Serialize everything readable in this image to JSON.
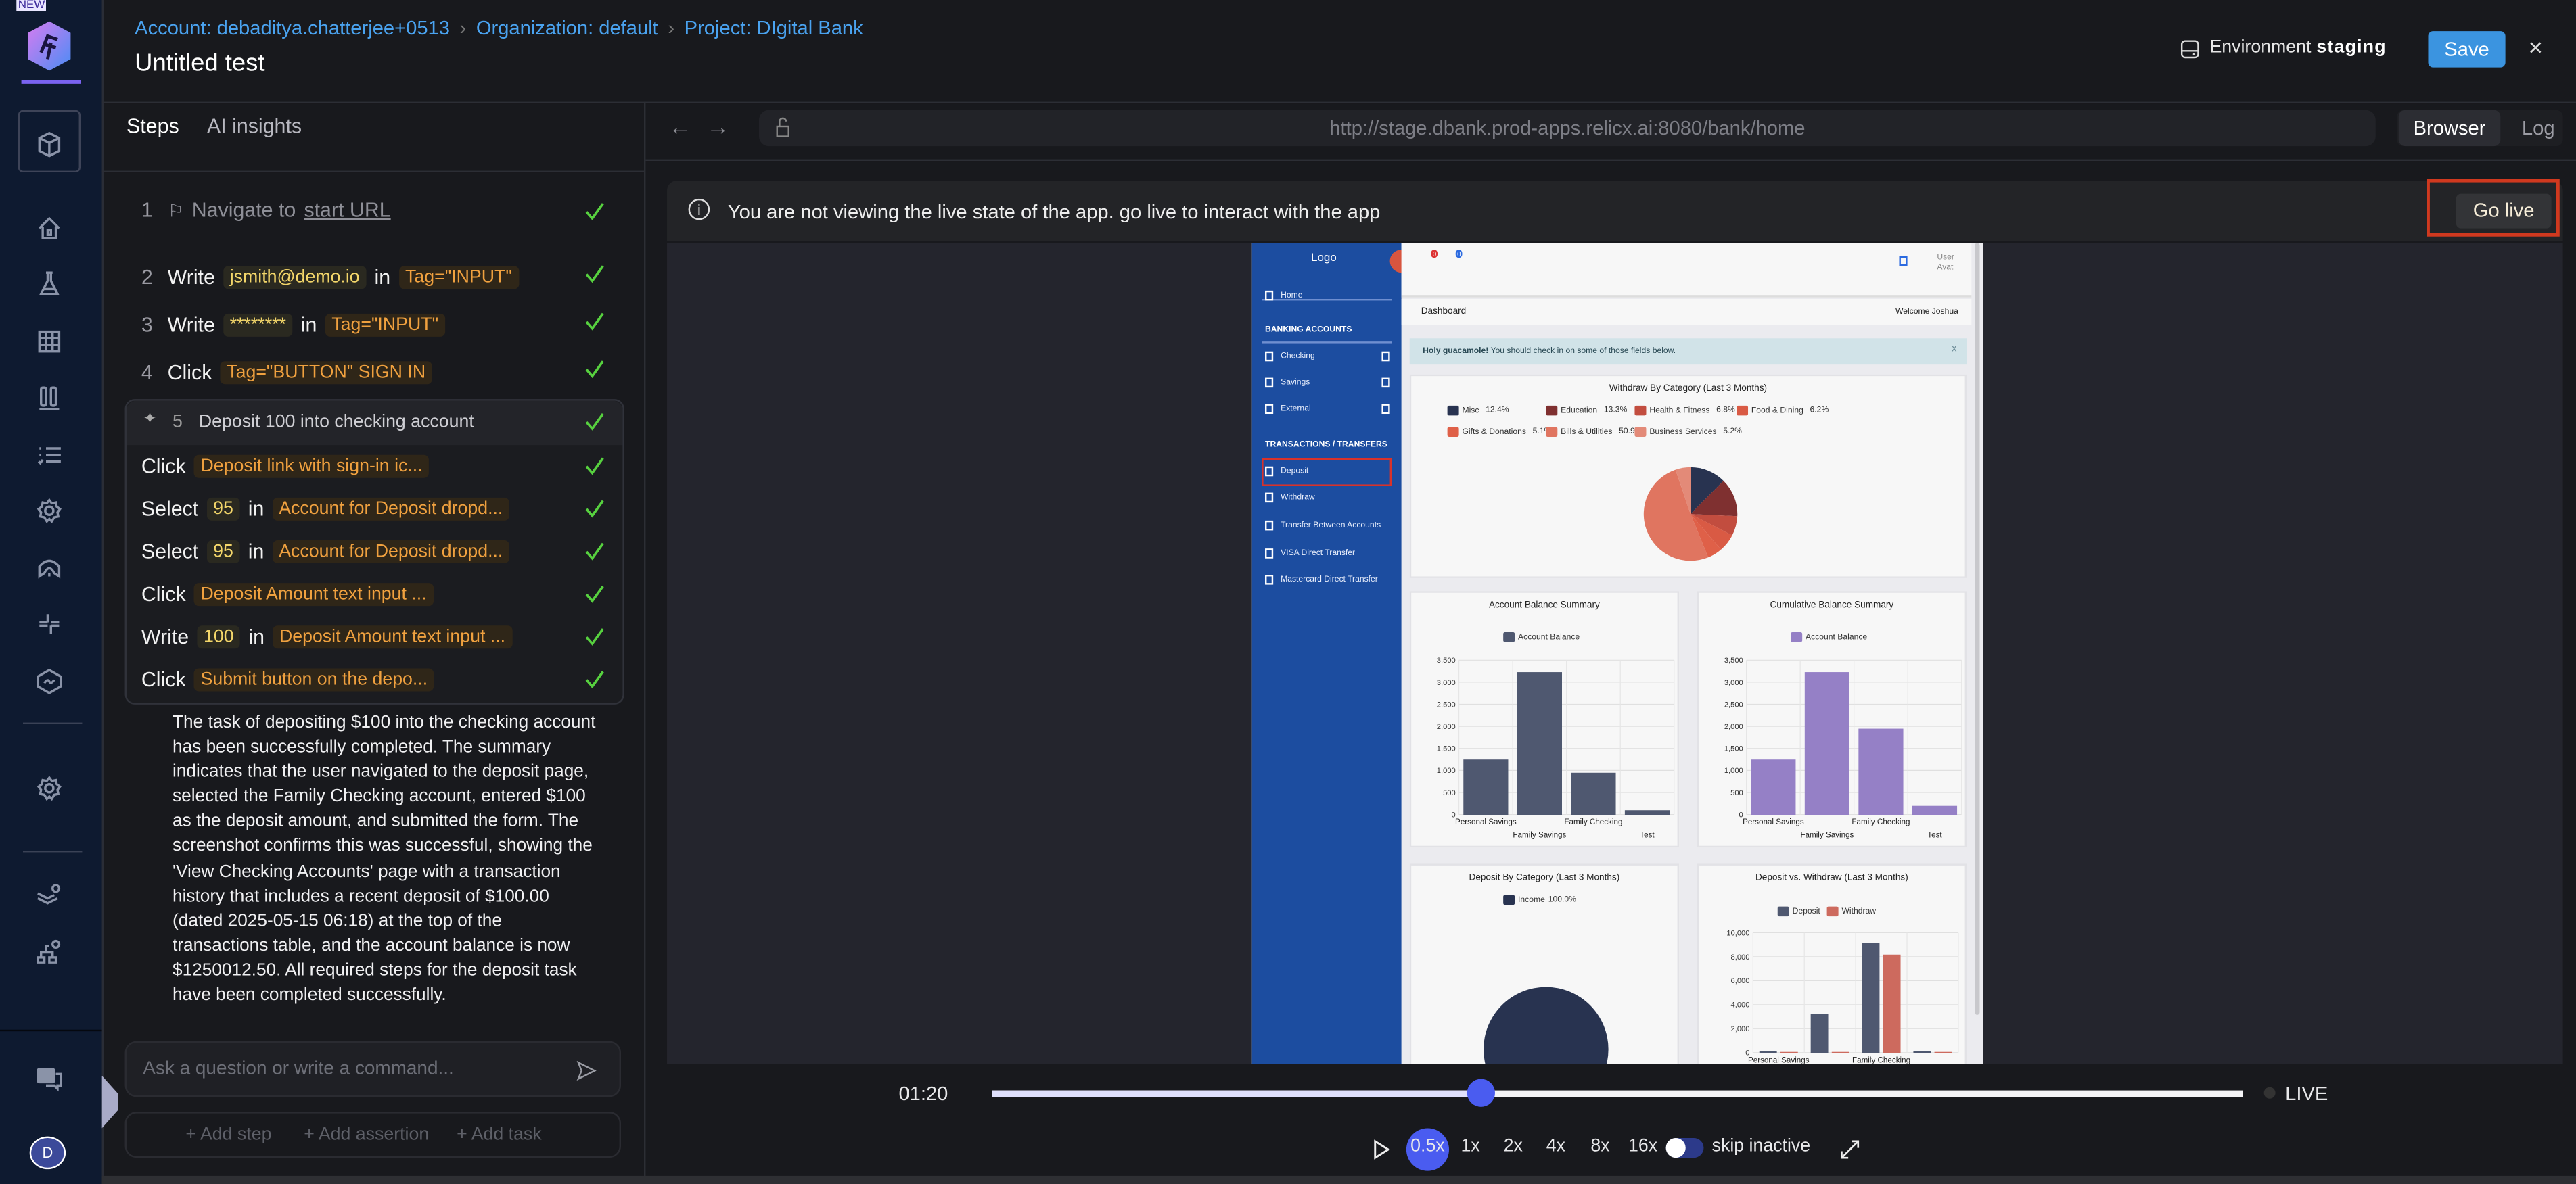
{
  "nav": {
    "new_badge": "NEW",
    "items": [
      "cube-icon",
      "home-icon",
      "flask-icon",
      "grid-icon",
      "columns-icon",
      "list-check-icon",
      "settings-icon",
      "arch-icon",
      "integrations-icon",
      "link-icon",
      "settings-icon",
      "layers-settings-icon",
      "sitemap-settings-icon",
      "help-chat-icon"
    ],
    "avatar_initial": "D"
  },
  "header": {
    "breadcrumb": [
      "Account: debadityа.chatterjee+0513",
      "Organization: default",
      "Project: DIgital Bank"
    ],
    "title": "Untitled test",
    "environment_label": "Environment",
    "environment_value": "staging",
    "save_label": "Save",
    "close_label": "×"
  },
  "left_panel": {
    "tabs": [
      "Steps",
      "AI insights"
    ],
    "active_tab": "Steps",
    "steps": [
      {
        "num": "1",
        "text": "Navigate to",
        "link": "start URL",
        "status": "passed"
      },
      {
        "num": "2",
        "action": "Write",
        "value": "jsmith@demo.io",
        "in": "in",
        "target": "Tag=\"INPUT\"",
        "status": "passed"
      },
      {
        "num": "3",
        "action": "Write",
        "value": "********",
        "in": "in",
        "target": "Tag=\"INPUT\"",
        "status": "passed"
      },
      {
        "num": "4",
        "action": "Click",
        "target": "Tag=\"BUTTON\" SIGN IN",
        "status": "passed"
      }
    ],
    "group": {
      "num": "5",
      "title": "Deposit 100 into checking account",
      "status": "passed",
      "substeps": [
        {
          "action": "Click",
          "target": "Deposit link with sign-in ic..."
        },
        {
          "action": "Select",
          "value": "95",
          "in": "in",
          "target": "Account for Deposit dropd..."
        },
        {
          "action": "Select",
          "value": "95",
          "in": "in",
          "target": "Account for Deposit dropd..."
        },
        {
          "action": "Click",
          "target": "Deposit Amount text input ..."
        },
        {
          "action": "Write",
          "value": "100",
          "in": "in",
          "target": "Deposit Amount text input ..."
        },
        {
          "action": "Click",
          "target": "Submit button on the depo..."
        }
      ]
    },
    "summary": "The task of depositing $100 into the checking account has been successfully completed. The summary indicates that the user navigated to the deposit page, selected the Family Checking account, entered $100 as the deposit amount, and submitted the form. The screenshot confirms this was successful, showing the 'View Checking Accounts' page with a transaction history that includes a recent deposit of $100.00 (dated 2025-05-15 06:18) at the top of the transactions table, and the account balance is now $1250012.50. All required steps for the deposit task have been completed successfully.",
    "ask_placeholder": "Ask a question or write a command...",
    "add_step": "+ Add step",
    "add_assertion": "+ Add assertion",
    "add_task": "+ Add task"
  },
  "browser": {
    "url": "http://stage.dbank.prod-apps.relicx.ai:8080/bank/home",
    "tabs": [
      "Browser",
      "Log"
    ],
    "active_tab": "Browser",
    "notice": "You are not viewing the live state of the app. go live to interact with the app",
    "go_live": "Go live"
  },
  "app": {
    "logo": "Logo",
    "user_avatar": "User Avat",
    "badges": [
      "0",
      "0"
    ],
    "sidebar": {
      "home": "Home",
      "banking_header": "BANKING ACCOUNTS",
      "banking": [
        "Checking",
        "Savings",
        "External"
      ],
      "transactions_header": "TRANSACTIONS / TRANSFERS",
      "transactions": [
        "Deposit",
        "Withdraw",
        "Transfer Between Accounts",
        "VISA Direct Transfer",
        "Mastercard Direct Transfer"
      ],
      "highlighted": "Deposit"
    },
    "page_title": "Dashboard",
    "welcome": "Welcome Joshua",
    "alert_bold": "Holy guacamole!",
    "alert_text": " You should check in on some of those fields below.",
    "alert_close": "x"
  },
  "chart_data": [
    {
      "type": "pie",
      "title": "Withdraw By Category (Last 3 Months)",
      "labels": [
        "Misc",
        "Education",
        "Health & Fitness",
        "Food & Dining",
        "Gifts & Donations",
        "Bills & Utilities",
        "Business Services"
      ],
      "percent_labels": [
        "12.4%",
        "13.3%",
        "6.8%",
        "6.2%",
        "5.1%",
        "50.9%",
        "5.2%"
      ],
      "values": [
        12.4,
        13.3,
        6.8,
        6.2,
        5.1,
        50.9,
        5.2
      ],
      "colors": [
        "#283350",
        "#7f3030",
        "#c24d3f",
        "#d95a44",
        "#df6048",
        "#e07560",
        "#e38a78"
      ]
    },
    {
      "type": "bar",
      "title": "Account Balance Summary",
      "categories": [
        "Personal Savings",
        "Family Savings",
        "Family Checking",
        "Test"
      ],
      "series": [
        {
          "name": "Account Balance",
          "values": [
            1240,
            3220,
            940,
            90
          ],
          "color": "#4f5870"
        }
      ],
      "ylim": [
        0,
        3500
      ],
      "yticks": [
        "0",
        "500",
        "1,000",
        "1,500",
        "2,000",
        "2,500",
        "3,000",
        "3,500"
      ],
      "grid": true,
      "legend": "top"
    },
    {
      "type": "bar",
      "title": "Cumulative Balance Summary",
      "categories": [
        "Personal Savings",
        "Family Savings",
        "Family Checking",
        "Test"
      ],
      "series": [
        {
          "name": "Account Balance",
          "values": [
            1240,
            3220,
            1940,
            190
          ],
          "color": "#9580c6"
        }
      ],
      "ylim": [
        0,
        3500
      ],
      "yticks": [
        "0",
        "500",
        "1,000",
        "1,500",
        "2,000",
        "2,500",
        "3,000",
        "3,500"
      ],
      "grid": true,
      "legend": "top"
    },
    {
      "type": "pie",
      "title": "Deposit By Category (Last 3 Months)",
      "labels": [
        "Income"
      ],
      "percent_labels": [
        "100.0%"
      ],
      "values": [
        100
      ],
      "colors": [
        "#283350"
      ]
    },
    {
      "type": "bar",
      "title": "Deposit vs. Withdraw (Last 3 Months)",
      "categories": [
        "Personal Savings",
        "",
        "Family Checking",
        ""
      ],
      "series": [
        {
          "name": "Deposit",
          "values": [
            120,
            3200,
            9100,
            110
          ],
          "color": "#4f5870"
        },
        {
          "name": "Withdraw",
          "values": [
            30,
            30,
            8150,
            30
          ],
          "color": "#cd6a5e"
        }
      ],
      "ylim": [
        0,
        10000
      ],
      "yticks": [
        "0",
        "2,000",
        "4,000",
        "6,000",
        "8,000",
        "10,000"
      ],
      "grid": true,
      "legend": "top"
    }
  ],
  "player": {
    "time": "01:20",
    "progress": 0.39,
    "live_label": "LIVE",
    "speeds": [
      "0.5x",
      "1x",
      "2x",
      "4x",
      "8x",
      "16x"
    ],
    "active_speed": "0.5x",
    "skip_inactive_label": "skip inactive",
    "skip_inactive_on": true
  },
  "colors": {
    "accent": "#4a5cf0",
    "save": "#3b94e0",
    "pass": "#57d13f",
    "chip_text": "#f0a13f",
    "highlight_box": "#d0391f"
  }
}
